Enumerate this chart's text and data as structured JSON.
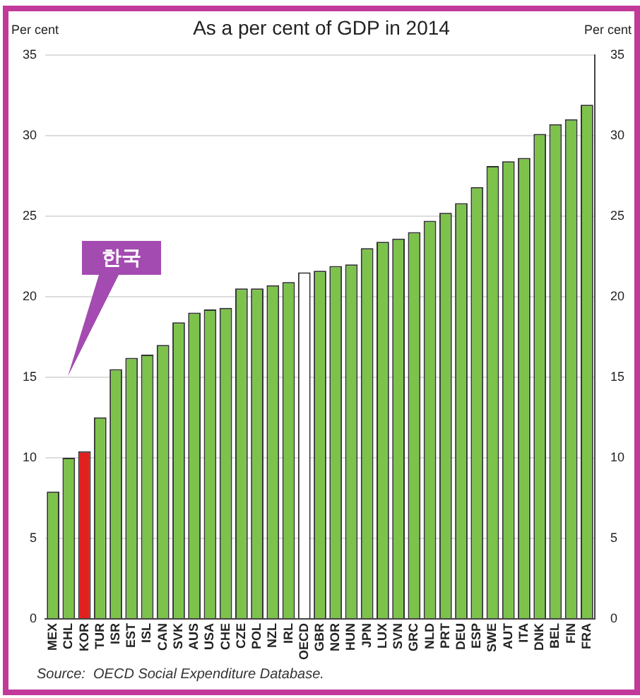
{
  "chart_data": {
    "type": "bar",
    "title": "As a per cent of GDP in 2014",
    "ylabel": "Per cent",
    "y2label": "Per cent",
    "categories": [
      "MEX",
      "CHL",
      "KOR",
      "TUR",
      "ISR",
      "EST",
      "ISL",
      "CAN",
      "SVK",
      "AUS",
      "USA",
      "CHE",
      "CZE",
      "POL",
      "NZL",
      "IRL",
      "OECD",
      "GBR",
      "NOR",
      "HUN",
      "JPN",
      "LUX",
      "SVN",
      "GRC",
      "NLD",
      "PRT",
      "DEU",
      "ESP",
      "SWE",
      "AUT",
      "ITA",
      "DNK",
      "BEL",
      "FIN",
      "FRA"
    ],
    "values": [
      7.9,
      10.0,
      10.4,
      12.5,
      15.5,
      16.2,
      16.4,
      17.0,
      18.4,
      19.0,
      19.2,
      19.3,
      20.5,
      20.5,
      20.7,
      20.9,
      21.5,
      21.6,
      21.9,
      22.0,
      23.0,
      23.4,
      23.6,
      24.0,
      24.7,
      25.2,
      25.8,
      26.8,
      28.1,
      28.4,
      28.6,
      30.1,
      30.7,
      31.0,
      31.9
    ],
    "colors": [
      "#7dc24b",
      "#7dc24b",
      "#e0201e",
      "#7dc24b",
      "#7dc24b",
      "#7dc24b",
      "#7dc24b",
      "#7dc24b",
      "#7dc24b",
      "#7dc24b",
      "#7dc24b",
      "#7dc24b",
      "#7dc24b",
      "#7dc24b",
      "#7dc24b",
      "#7dc24b",
      "#ffffff",
      "#7dc24b",
      "#7dc24b",
      "#7dc24b",
      "#7dc24b",
      "#7dc24b",
      "#7dc24b",
      "#7dc24b",
      "#7dc24b",
      "#7dc24b",
      "#7dc24b",
      "#7dc24b",
      "#7dc24b",
      "#7dc24b",
      "#7dc24b",
      "#7dc24b",
      "#7dc24b",
      "#7dc24b",
      "#7dc24b"
    ],
    "ylim": [
      0,
      35
    ],
    "yticks": [
      0,
      5,
      10,
      15,
      20,
      25,
      30,
      35
    ],
    "y2lim": [
      0,
      35
    ],
    "y2ticks": [
      0,
      5,
      10,
      15,
      20,
      25,
      30,
      35
    ],
    "grid": "y",
    "annotations": [
      "한국",
      "Source:  OECD Social Expenditure Database."
    ]
  }
}
